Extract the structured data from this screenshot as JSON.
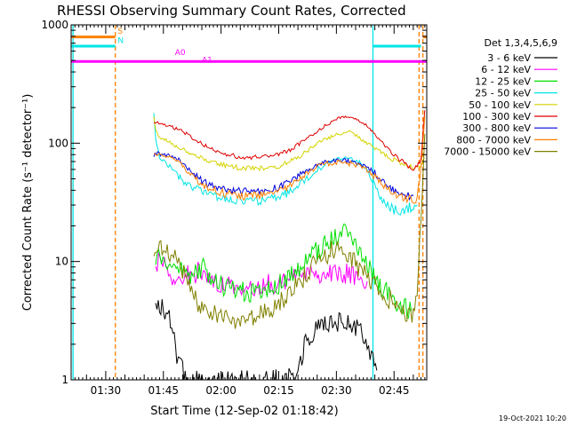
{
  "chart_data": {
    "type": "line",
    "title": "RHESSI Observing Summary Count Rates, Corrected",
    "ylabel": "Corrected Count Rate (s⁻¹ detector⁻¹)",
    "xlabel": "Start Time (12-Sep-02 01:18:42)",
    "timestamp": "19-Oct-2021 10:20",
    "x_unit": "minutes",
    "xlim": [
      81,
      173.5
    ],
    "ylim": [
      1,
      1000
    ],
    "y_scale": "log",
    "x_ticks": [
      {
        "value": 90,
        "label": "01:30"
      },
      {
        "value": 105,
        "label": "01:45"
      },
      {
        "value": 120,
        "label": "02:00"
      },
      {
        "value": 135,
        "label": "02:15"
      },
      {
        "value": 150,
        "label": "02:30"
      },
      {
        "value": 165,
        "label": "02:45"
      }
    ],
    "y_ticks": [
      {
        "value": 1,
        "label": "1"
      },
      {
        "value": 10,
        "label": "10"
      },
      {
        "value": 100,
        "label": "100"
      },
      {
        "value": 1000,
        "label": "1000"
      }
    ],
    "legend": {
      "title": "Det 1,3,4,5,6,9",
      "placement": "right",
      "entries": [
        {
          "label": "3 - 6 keV",
          "color": "#000000"
        },
        {
          "label": "6 - 12 keV",
          "color": "#ff00ff"
        },
        {
          "label": "12 - 25 keV",
          "color": "#00e000"
        },
        {
          "label": "25 - 50 keV",
          "color": "#00e5e5"
        },
        {
          "label": "50 - 100 keV",
          "color": "#d4d400"
        },
        {
          "label": "100 - 300 keV",
          "color": "#e00000"
        },
        {
          "label": "300 - 800 keV",
          "color": "#0000e0"
        },
        {
          "label": "800 - 7000 keV",
          "color": "#ff8000"
        },
        {
          "label": "7000 - 15000 keV",
          "color": "#808000"
        }
      ]
    },
    "series": [
      {
        "name": "3 - 6 keV",
        "color": "#000000",
        "x": [
          103,
          105,
          106.5,
          107.5,
          108.5,
          110,
          112,
          116,
          120,
          125,
          130,
          135,
          138,
          140,
          142,
          145,
          148,
          150,
          152,
          154,
          156,
          158,
          159.5,
          160.5
        ],
        "y": [
          4.5,
          4.2,
          3.2,
          2.5,
          1.6,
          1.2,
          1.0,
          1.0,
          1.0,
          1.0,
          1.0,
          1.0,
          1.05,
          1.3,
          2.0,
          2.8,
          3.0,
          3.0,
          3.0,
          2.9,
          2.6,
          2.0,
          1.5,
          1.2
        ]
      },
      {
        "name": "6 - 12 keV",
        "color": "#ff00ff",
        "x": [
          103,
          104.5,
          106,
          107,
          108,
          109,
          110,
          111,
          113,
          114,
          116,
          117,
          118,
          120,
          122,
          125,
          128,
          131,
          134,
          137,
          140,
          143,
          145,
          148,
          150,
          153,
          155,
          157,
          158
        ],
        "y": [
          10,
          9.5,
          8.5,
          7.5,
          7,
          6.8,
          7.2,
          7.5,
          7.8,
          8.5,
          7.5,
          7,
          6.4,
          6.3,
          6.2,
          6.1,
          6.2,
          6.3,
          6.5,
          6.9,
          7.4,
          7.8,
          8,
          8.1,
          8,
          7.8,
          7.4,
          7,
          6.8
        ]
      },
      {
        "name": "12 - 25 keV",
        "color": "#00e000",
        "x": [
          103,
          104.5,
          106,
          108,
          110,
          112,
          114,
          115,
          116,
          117,
          118,
          120,
          122,
          125,
          128,
          131,
          134,
          136,
          138,
          140,
          142,
          144,
          146,
          148,
          150,
          151,
          152,
          153,
          154,
          155,
          156,
          158,
          160,
          162,
          164,
          166,
          168,
          169.5
        ],
        "y": [
          11,
          10.5,
          9.5,
          8.5,
          8,
          7.6,
          7.8,
          9,
          8,
          7,
          6.5,
          6.3,
          6,
          5.7,
          5.5,
          5.6,
          6,
          6.7,
          7.4,
          8.4,
          9.8,
          11.5,
          13,
          14.5,
          16,
          17,
          18,
          17,
          15,
          14,
          12,
          9,
          7.5,
          6,
          5,
          4.4,
          4,
          3.8
        ]
      },
      {
        "name": "25 - 50 keV",
        "color": "#00e5e5",
        "x": [
          102.5,
          103,
          104,
          106,
          108,
          110,
          113,
          116,
          120,
          125,
          130,
          135,
          138,
          141,
          144,
          147,
          150,
          152,
          153,
          154,
          155,
          156,
          158,
          160,
          162,
          164,
          166,
          168,
          170,
          171
        ],
        "y": [
          180,
          110,
          75,
          66,
          56,
          48,
          42,
          38,
          35,
          33,
          33,
          35,
          39,
          46,
          56,
          66,
          73,
          74,
          73,
          72,
          70,
          68,
          60,
          45,
          33,
          28,
          27,
          28,
          29,
          30
        ]
      },
      {
        "name": "50 - 100 keV",
        "color": "#d4d400",
        "x": [
          102.5,
          103,
          104,
          106,
          108,
          110,
          113,
          116,
          120,
          125,
          130,
          135,
          138,
          141,
          144,
          147,
          150,
          151.5,
          153,
          154.5,
          156,
          158,
          160,
          162,
          164,
          166,
          168,
          170,
          171,
          172,
          173
        ],
        "y": [
          170,
          130,
          112,
          104,
          96,
          89,
          80,
          72,
          66,
          62,
          62,
          64,
          70,
          80,
          94,
          108,
          118,
          122,
          128,
          120,
          110,
          100,
          90,
          82,
          75,
          70,
          65,
          62,
          62,
          64,
          75
        ]
      },
      {
        "name": "100 - 300 keV",
        "color": "#e00000",
        "x": [
          102.5,
          103.5,
          105,
          107,
          109,
          111,
          113,
          116,
          120,
          125,
          130,
          135,
          138,
          141,
          144,
          147,
          150,
          152,
          154,
          156,
          158,
          160,
          162,
          164,
          166,
          168,
          170,
          171,
          172,
          173
        ],
        "y": [
          150,
          150,
          145,
          138,
          130,
          120,
          108,
          95,
          82,
          76,
          76,
          80,
          88,
          102,
          120,
          140,
          160,
          168,
          165,
          155,
          140,
          120,
          100,
          85,
          75,
          66,
          62,
          63,
          75,
          190
        ]
      },
      {
        "name": "300 - 800 keV",
        "color": "#0000e0",
        "x": [
          102.5,
          103.5,
          105,
          107,
          109,
          111,
          113,
          116,
          120,
          125,
          130,
          135,
          138,
          141,
          144,
          147,
          150,
          152,
          154,
          156,
          158,
          160,
          162,
          164,
          166,
          168,
          170
        ],
        "y": [
          80,
          82,
          80,
          78,
          73,
          63,
          54,
          46,
          41,
          39,
          39,
          42,
          47,
          55,
          64,
          70,
          72,
          71,
          70,
          67,
          62,
          56,
          48,
          42,
          38,
          36,
          36
        ]
      },
      {
        "name": "800 - 7000 keV",
        "color": "#ff8000",
        "x": [
          102.5,
          103.5,
          105,
          107,
          109,
          111,
          113,
          116,
          120,
          125,
          130,
          135,
          138,
          141,
          144,
          147,
          150,
          152,
          154,
          156,
          158,
          160,
          162,
          164,
          166,
          168,
          170,
          171,
          172,
          173
        ],
        "y": [
          78,
          79,
          77,
          75,
          70,
          60,
          51,
          43,
          38,
          36,
          36,
          39,
          44,
          52,
          61,
          67,
          69,
          68,
          67,
          64,
          59,
          52,
          45,
          40,
          36,
          34,
          33,
          34,
          60,
          170
        ]
      },
      {
        "name": "7000 - 15000 keV",
        "color": "#808000",
        "x": [
          102.5,
          104,
          106,
          108,
          109,
          110,
          112,
          114,
          116,
          118,
          120,
          122,
          125,
          128,
          131,
          134,
          137,
          140,
          143,
          146,
          149,
          152,
          155,
          158,
          160,
          162,
          164,
          166,
          168,
          170,
          171,
          172,
          173
        ],
        "y": [
          13,
          13,
          12.5,
          11.5,
          10,
          8,
          6,
          4.6,
          3.9,
          3.6,
          3.4,
          3.3,
          3.3,
          3.4,
          3.6,
          4.1,
          5,
          6.5,
          8.5,
          10.5,
          12.5,
          11.5,
          9.5,
          7.5,
          6.3,
          5.5,
          4.7,
          4.1,
          3.6,
          3.4,
          6,
          20,
          120
        ]
      }
    ],
    "annotations": {
      "vertical_lines": [
        {
          "x": 81.5,
          "color": "#00e5e5",
          "style": "solid"
        },
        {
          "x": 92.5,
          "color": "#ff8000",
          "style": "dashed"
        },
        {
          "x": 159.5,
          "color": "#00e5e5",
          "style": "solid"
        },
        {
          "x": 171.5,
          "color": "#ff8000",
          "style": "dashed"
        },
        {
          "x": 172.5,
          "color": "#ff8000",
          "style": "dashed"
        }
      ],
      "bars": [
        {
          "label": "S",
          "x_start": 81,
          "x_end": 92.5,
          "y": 790,
          "color": "#ff8000"
        },
        {
          "label": "",
          "x_start": 172.5,
          "x_end": 173.5,
          "y": 790,
          "color": "#ff8000"
        },
        {
          "label": "N",
          "x_start": 81,
          "x_end": 92.5,
          "y": 660,
          "color": "#00e5e5"
        },
        {
          "label": "",
          "x_start": 159.5,
          "x_end": 172,
          "y": 660,
          "color": "#00e5e5"
        },
        {
          "label": "",
          "x_start": 81,
          "x_end": 173.5,
          "y": 490,
          "color": "#ff00ff"
        }
      ],
      "text_labels": [
        {
          "text": "S",
          "x": 93.1,
          "y": 840,
          "color": "#ff8000"
        },
        {
          "text": "N",
          "x": 93.1,
          "y": 700,
          "color": "#00e5e5"
        },
        {
          "text": "A0",
          "x": 108,
          "y": 555,
          "color": "#ff00ff"
        },
        {
          "text": "A1",
          "x": 115,
          "y": 480,
          "color": "#ff00ff"
        }
      ]
    }
  }
}
